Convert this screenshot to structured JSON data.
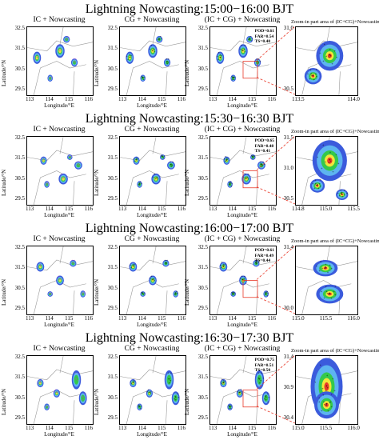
{
  "panel_titles": {
    "ic": "IC + Nowcasting",
    "cg": "CG + Nowcasting",
    "both": "(IC + CG) + Nowcasting",
    "zoom": "Zoom-in part area of (IC+CG)+Nowcasting"
  },
  "axis": {
    "xlabel": "Longitude/°E",
    "ylabel": "Latitude/°N",
    "xticks": [
      "113",
      "114",
      "115",
      "116"
    ],
    "yticks": [
      "32.5",
      "31.5",
      "30.5",
      "29.5"
    ]
  },
  "blocks": [
    {
      "title": "Lightning Nowcasting:15:00−16:00 BJT",
      "scores": {
        "pod": "POD=0.61",
        "far": "FAR=0.54",
        "ts": "TS=0.40"
      },
      "zoom_xticks": [
        "113.5",
        "114.0"
      ],
      "zoom_yticks": [
        "31.0",
        "30.5"
      ]
    },
    {
      "title": "Lightning Nowcasting:15:30−16:30 BJT",
      "scores": {
        "pod": "POD=0.65",
        "far": "FAR=0.48",
        "ts": "TS=0.41"
      },
      "zoom_xticks": [
        "114.8",
        "115.0",
        "115.5"
      ],
      "zoom_yticks": [
        "31.5",
        "31.0",
        "30.5"
      ]
    },
    {
      "title": "Lightning Nowcasting:16:00−17:00 BJT",
      "scores": {
        "pod": "POD=0.61",
        "far": "FAR=0.49",
        "ts": "TS=0.44"
      },
      "zoom_xticks": [
        "115.0",
        "115.5",
        "116.0"
      ],
      "zoom_yticks": [
        "31.4",
        "30.0"
      ]
    },
    {
      "title": "Lightning Nowcasting:16:30−17:30 BJT",
      "scores": {
        "pod": "POD=0.75",
        "far": "FAR=0.51",
        "ts": "TS=0.50"
      },
      "zoom_xticks": [
        "115.0",
        "115.5",
        "116.0"
      ],
      "zoom_yticks": [
        "31.4",
        "30.9",
        "30.4"
      ]
    }
  ],
  "colors": {
    "outer": "#3b5bdc",
    "mid": "#5db4f0",
    "inner": "#34c94a",
    "core": "#f2e53a",
    "peak": "#e83a2a",
    "lightning": "#000000",
    "ic_marks": "#c03cc0",
    "connector": "#e83a2a"
  }
}
